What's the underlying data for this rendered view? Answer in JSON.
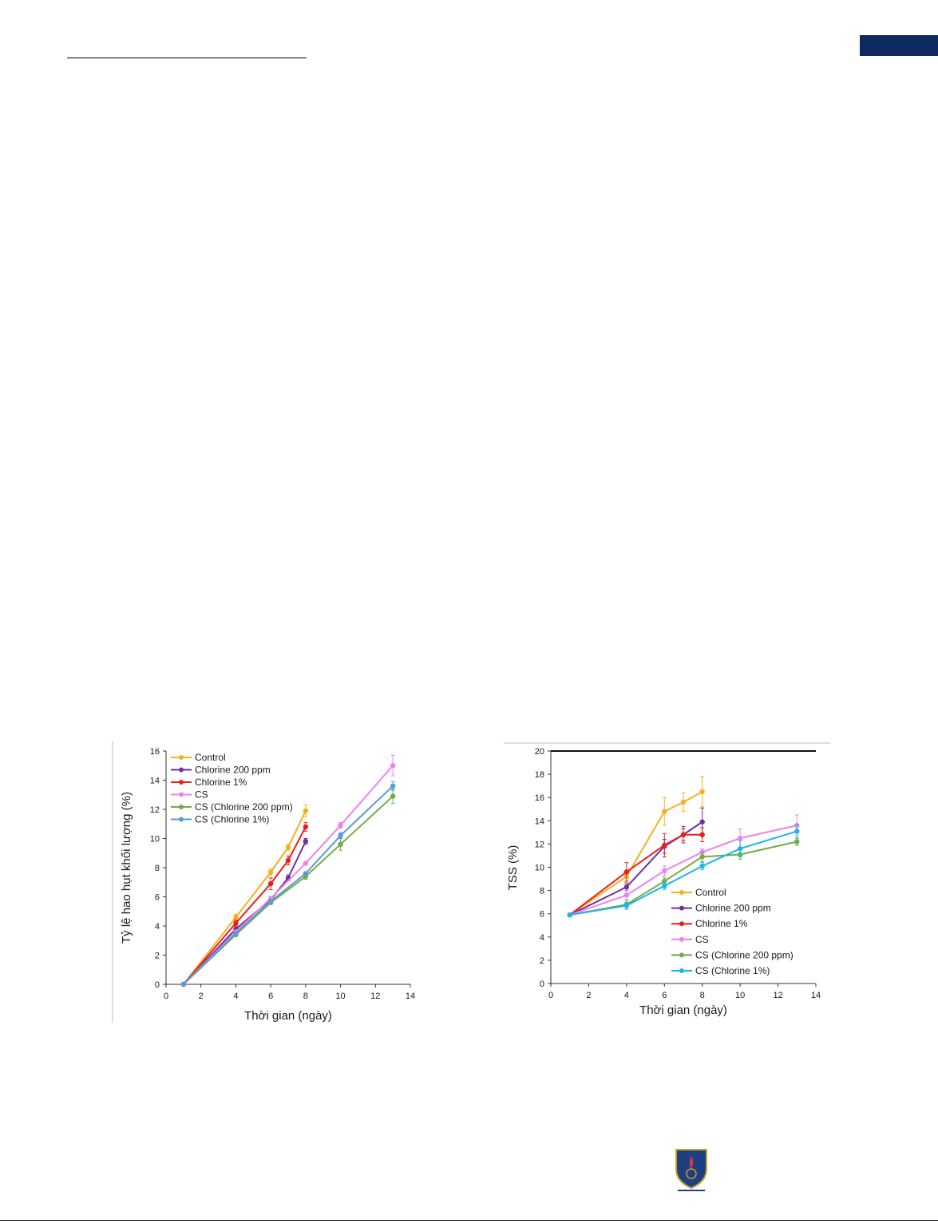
{
  "chart_data": [
    {
      "type": "line",
      "title": "",
      "xlabel": "Thời gian (ngày)",
      "ylabel": "Tỷ lệ hao hụt khối lượng (%)",
      "xlim": [
        0,
        14
      ],
      "ylim": [
        0,
        16
      ],
      "xticks": [
        "0",
        "2",
        "4",
        "6",
        "8",
        "10",
        "12",
        "14"
      ],
      "yticks": [
        "0",
        "2",
        "4",
        "6",
        "8",
        "10",
        "12",
        "14",
        "16"
      ],
      "legend_position": "top-left",
      "grid": false,
      "series": [
        {
          "name": "Control",
          "color": "#f6b11e",
          "x": [
            1,
            4,
            6,
            7,
            8
          ],
          "y": [
            0,
            4.6,
            7.7,
            9.4,
            11.9
          ],
          "err": [
            0,
            0.2,
            0.2,
            0.2,
            0.4
          ]
        },
        {
          "name": "Chlorine 200 ppm",
          "color": "#7030a0",
          "x": [
            1,
            4,
            6,
            7,
            8
          ],
          "y": [
            0,
            3.8,
            5.8,
            7.3,
            9.8
          ],
          "err": [
            0,
            0.1,
            0.2,
            0.2,
            0.2
          ]
        },
        {
          "name": "Chlorine 1%",
          "color": "#e8201c",
          "x": [
            1,
            4,
            6,
            7,
            8
          ],
          "y": [
            0,
            4.2,
            6.9,
            8.5,
            10.8
          ],
          "err": [
            0,
            0.2,
            0.4,
            0.3,
            0.3
          ]
        },
        {
          "name": "CS",
          "color": "#ee82ee",
          "x": [
            1,
            4,
            6,
            8,
            10,
            13
          ],
          "y": [
            0,
            3.6,
            5.9,
            8.3,
            10.9,
            15.0
          ],
          "err": [
            0,
            0.1,
            0.1,
            0.1,
            0.2,
            0.7
          ]
        },
        {
          "name": "CS (Chlorine 200 ppm)",
          "color": "#70ad47",
          "x": [
            1,
            4,
            6,
            8,
            10,
            13
          ],
          "y": [
            0,
            3.4,
            5.6,
            7.4,
            9.6,
            12.9
          ],
          "err": [
            0,
            0.1,
            0.1,
            0.2,
            0.4,
            0.5
          ]
        },
        {
          "name": "CS (Chlorine 1%)",
          "color": "#5b9bd5",
          "x": [
            1,
            4,
            6,
            8,
            10,
            13
          ],
          "y": [
            0,
            3.5,
            5.7,
            7.6,
            10.2,
            13.6
          ],
          "err": [
            0,
            0.1,
            0.1,
            0.1,
            0.2,
            0.3
          ]
        }
      ]
    },
    {
      "type": "line",
      "title": "",
      "xlabel": "Thời gian (ngày)",
      "ylabel": "TSS (%)",
      "xlim": [
        0,
        14
      ],
      "ylim": [
        0,
        20
      ],
      "xticks": [
        "0",
        "2",
        "4",
        "6",
        "8",
        "10",
        "12",
        "14"
      ],
      "yticks": [
        "0",
        "2",
        "4",
        "6",
        "8",
        "10",
        "12",
        "14",
        "16",
        "18",
        "20"
      ],
      "legend_position": "bottom-right",
      "grid": false,
      "series": [
        {
          "name": "Control",
          "color": "#f6b11e",
          "x": [
            1,
            4,
            6,
            7,
            8
          ],
          "y": [
            5.9,
            9.2,
            14.8,
            15.6,
            16.5
          ],
          "err": [
            0,
            0.5,
            1.2,
            0.8,
            1.3
          ]
        },
        {
          "name": "Chlorine 200 ppm",
          "color": "#7030a0",
          "x": [
            1,
            4,
            6,
            7,
            8
          ],
          "y": [
            5.9,
            8.3,
            11.8,
            12.8,
            13.9
          ],
          "err": [
            0,
            0.3,
            0.6,
            0.5,
            1.2
          ]
        },
        {
          "name": "Chlorine 1%",
          "color": "#e8201c",
          "x": [
            1,
            4,
            6,
            7,
            8
          ],
          "y": [
            5.9,
            9.6,
            11.9,
            12.8,
            12.8
          ],
          "err": [
            0,
            0.8,
            1.0,
            0.7,
            0.6
          ]
        },
        {
          "name": "CS",
          "color": "#ee82ee",
          "x": [
            1,
            4,
            6,
            8,
            10,
            13
          ],
          "y": [
            5.9,
            7.6,
            9.7,
            11.3,
            12.5,
            13.6
          ],
          "err": [
            0,
            0.4,
            0.4,
            0.3,
            0.8,
            0.9
          ]
        },
        {
          "name": "CS (Chlorine 200 ppm)",
          "color": "#70ad47",
          "x": [
            1,
            4,
            6,
            8,
            10,
            13
          ],
          "y": [
            5.9,
            6.8,
            8.8,
            10.9,
            11.1,
            12.2
          ],
          "err": [
            0,
            0.4,
            0.3,
            0.4,
            0.4,
            0.3
          ]
        },
        {
          "name": "CS (Chlorine 1%)",
          "color": "#1fb4e8",
          "x": [
            1,
            4,
            6,
            8,
            10,
            13
          ],
          "y": [
            5.9,
            6.7,
            8.4,
            10.1,
            11.6,
            13.1
          ],
          "err": [
            0,
            0.3,
            0.3,
            0.3,
            0.7,
            0.6
          ]
        }
      ]
    }
  ]
}
